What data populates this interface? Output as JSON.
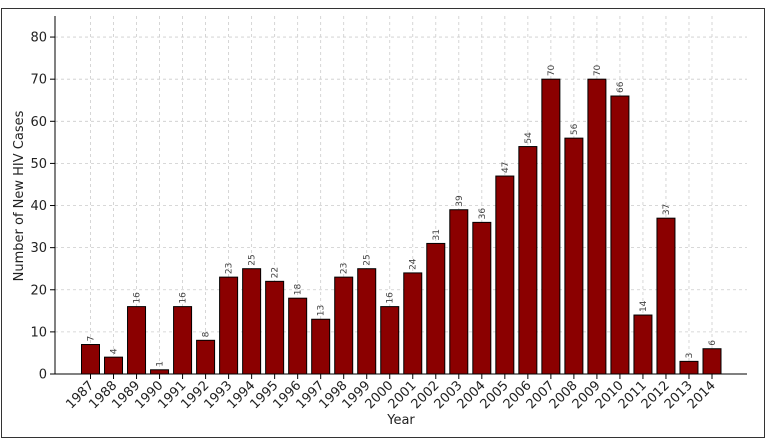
{
  "chart_data": {
    "type": "bar",
    "title": "",
    "xlabel": "Year",
    "ylabel": "Number of New HIV Cases",
    "ylim": [
      0,
      85
    ],
    "yticks": [
      0,
      10,
      20,
      30,
      40,
      50,
      60,
      70,
      80
    ],
    "grid": true,
    "legend": "none",
    "bar_color": "#8b0000",
    "bar_edge_color": "#000000",
    "categories": [
      "1987",
      "1988",
      "1989",
      "1990",
      "1991",
      "1992",
      "1993",
      "1994",
      "1995",
      "1996",
      "1997",
      "1998",
      "1999",
      "2000",
      "2001",
      "2002",
      "2003",
      "2004",
      "2005",
      "2006",
      "2007",
      "2008",
      "2009",
      "2010",
      "2011",
      "2012",
      "2013",
      "2014"
    ],
    "values": [
      7,
      4,
      16,
      1,
      16,
      8,
      23,
      25,
      22,
      18,
      13,
      23,
      25,
      16,
      24,
      31,
      39,
      36,
      47,
      54,
      70,
      56,
      70,
      66,
      14,
      37,
      3,
      6
    ]
  }
}
